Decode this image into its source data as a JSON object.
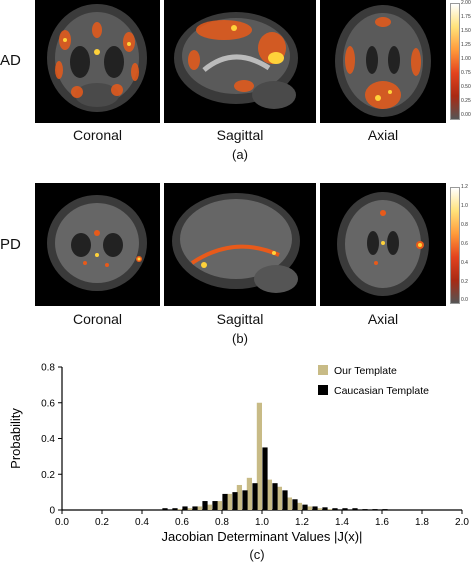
{
  "figure": {
    "row_a": {
      "label": "AD",
      "views": [
        "Coronal",
        "Sagittal",
        "Axial"
      ],
      "caption": "(a)",
      "colorbar_ticks": [
        "2.00",
        "1.75",
        "1.50",
        "1.25",
        "1.00",
        "0.75",
        "0.50",
        "0.25",
        "0.00"
      ]
    },
    "row_b": {
      "label": "PD",
      "views": [
        "Coronal",
        "Sagittal",
        "Axial"
      ],
      "caption": "(b)",
      "colorbar_ticks": [
        "1.2",
        "1.0",
        "0.8",
        "0.6",
        "0.4",
        "0.2",
        "0.0"
      ]
    },
    "caption_c": "(c)"
  },
  "chart_data": {
    "type": "bar",
    "xlabel": "Jacobian Determinant Values |J(x)|",
    "ylabel": "Probability",
    "xlim": [
      0.0,
      2.0
    ],
    "ylim": [
      0.0,
      0.8
    ],
    "x_ticks": [
      "0.0",
      "0.2",
      "0.4",
      "0.6",
      "0.8",
      "1.0",
      "1.2",
      "1.4",
      "1.6",
      "1.8",
      "2.0"
    ],
    "y_ticks": [
      "0",
      "0.2",
      "0.4",
      "0.6",
      "0.8"
    ],
    "x": [
      0.5,
      0.55,
      0.6,
      0.65,
      0.7,
      0.75,
      0.8,
      0.85,
      0.9,
      0.95,
      1.0,
      1.05,
      1.1,
      1.15,
      1.2,
      1.25,
      1.3,
      1.35,
      1.4,
      1.45,
      1.5,
      1.55,
      1.6
    ],
    "series": [
      {
        "name": "Our Template",
        "color": "#c8bb86",
        "values": [
          0.0,
          0.0,
          0.005,
          0.01,
          0.02,
          0.03,
          0.05,
          0.09,
          0.14,
          0.18,
          0.6,
          0.17,
          0.13,
          0.07,
          0.04,
          0.02,
          0.01,
          0.005,
          0.0,
          0.0,
          0.0,
          0.0,
          0.0
        ]
      },
      {
        "name": "Caucasian Template",
        "color": "#000000",
        "values": [
          0.01,
          0.01,
          0.02,
          0.02,
          0.05,
          0.05,
          0.09,
          0.1,
          0.11,
          0.15,
          0.35,
          0.15,
          0.11,
          0.06,
          0.03,
          0.02,
          0.015,
          0.01,
          0.01,
          0.01,
          0.005,
          0.005,
          0.005
        ]
      }
    ],
    "legend_position": "top-right"
  }
}
